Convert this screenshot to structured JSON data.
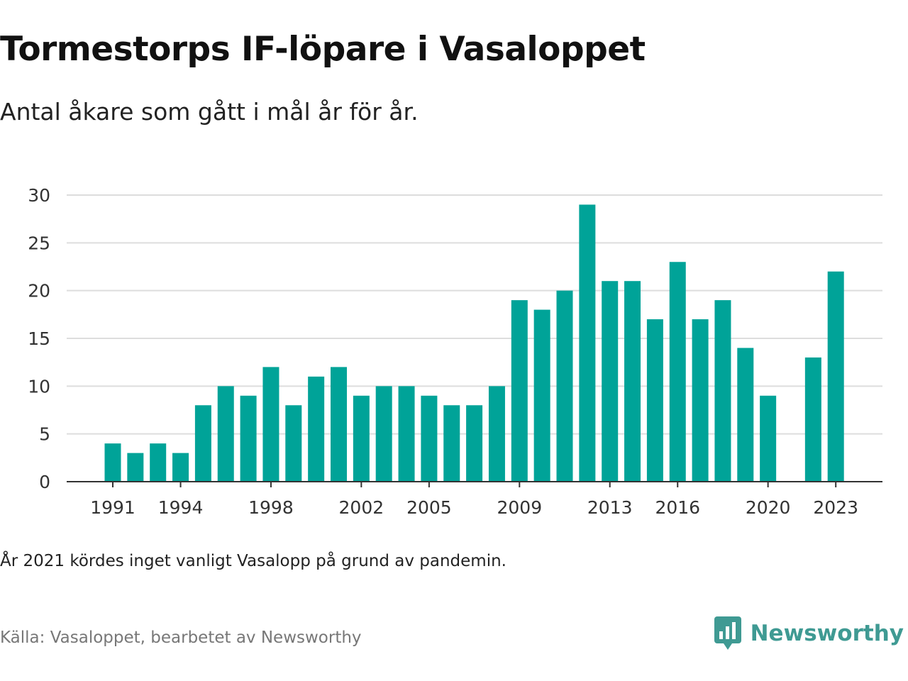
{
  "title": "Tormestorps IF-löpare i Vasaloppet",
  "subtitle": "Antal åkare som gått i mål år för år.",
  "note": "År 2021 kördes inget vanligt Vasalopp på grund av pandemin.",
  "source": "Källa: Vasaloppet, bearbetet av Newsworthy",
  "brand": {
    "name": "Newsworthy",
    "icon": "newsworthy-logo-icon",
    "color": "#3f9a93"
  },
  "colors": {
    "bar": "#00a398",
    "grid": "#dddddd",
    "axis": "#333333",
    "tick_text": "#333333"
  },
  "chart_data": {
    "type": "bar",
    "x": [
      1991,
      1992,
      1993,
      1994,
      1995,
      1996,
      1997,
      1998,
      1999,
      2000,
      2001,
      2002,
      2003,
      2004,
      2005,
      2006,
      2007,
      2008,
      2009,
      2010,
      2011,
      2012,
      2013,
      2014,
      2015,
      2016,
      2017,
      2018,
      2019,
      2020,
      2021,
      2022,
      2023
    ],
    "values": [
      4,
      3,
      4,
      3,
      8,
      10,
      9,
      12,
      8,
      11,
      12,
      9,
      10,
      10,
      9,
      8,
      8,
      10,
      19,
      18,
      20,
      29,
      21,
      21,
      17,
      23,
      17,
      19,
      14,
      9,
      null,
      13,
      22
    ],
    "x_tick_labels": [
      "1991",
      "1994",
      "1998",
      "2002",
      "2005",
      "2009",
      "2013",
      "2016",
      "2020",
      "2023"
    ],
    "y_ticks": [
      0,
      5,
      10,
      15,
      20,
      25,
      30
    ],
    "ylim": [
      0,
      30
    ],
    "grid": true,
    "xlabel": "",
    "ylabel": ""
  }
}
